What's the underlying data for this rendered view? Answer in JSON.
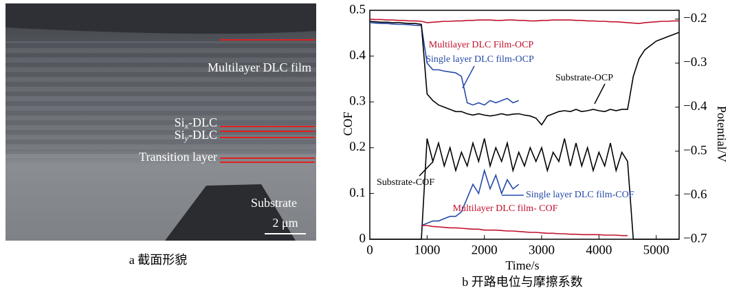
{
  "image_panel": {
    "labels": {
      "multilayer": "Multilayer DLC film",
      "six": [
        "Si",
        "x",
        "-DLC"
      ],
      "siy": [
        "Si",
        "y",
        "-DLC"
      ],
      "transition": "Transition layer",
      "substrate": "Substrate",
      "scale_bar": "2 μm"
    },
    "caption": "a  截面形貌"
  },
  "chart_data": {
    "type": "line",
    "caption": "b  开路电位与摩擦系数",
    "xlabel": "Time/s",
    "ylabel": "COF",
    "y2label": "Potential/V",
    "x": [
      0,
      100,
      200,
      300,
      400,
      500,
      600,
      700,
      800,
      900,
      1000,
      1100,
      1200,
      1300,
      1400,
      1500,
      1600,
      1700,
      1800,
      1900,
      2000,
      2100,
      2200,
      2300,
      2400,
      2500,
      2600,
      2700,
      2800,
      2900,
      3000,
      3100,
      3200,
      3300,
      3400,
      3500,
      3600,
      3700,
      3800,
      3900,
      4000,
      4100,
      4200,
      4300,
      4400,
      4500,
      4600,
      4700,
      4800,
      4900,
      5000,
      5100,
      5200,
      5300,
      5400
    ],
    "xlim": [
      0,
      5400
    ],
    "xticks": [
      0,
      1000,
      2000,
      3000,
      4000,
      5000
    ],
    "ylim": [
      0,
      0.5
    ],
    "yticks": [
      0,
      0.1,
      0.2,
      0.3,
      0.4,
      0.5
    ],
    "y2lim": [
      -0.7,
      -0.18
    ],
    "y2ticks": [
      {
        "value": -0.2,
        "label": "−0.2"
      },
      {
        "value": -0.3,
        "label": "−0.3"
      },
      {
        "value": -0.4,
        "label": "−0.4"
      },
      {
        "value": -0.5,
        "label": "−0.5"
      },
      {
        "value": -0.6,
        "label": "−0.6"
      },
      {
        "value": -0.7,
        "label": "−0.7"
      }
    ],
    "series": [
      {
        "name": "Multilayer DLC Film-OCP",
        "color": "#c0102c",
        "axis": "y2",
        "values": [
          -0.2,
          -0.201,
          -0.201,
          -0.202,
          -0.202,
          -0.203,
          -0.203,
          -0.204,
          -0.204,
          -0.205,
          -0.208,
          -0.207,
          -0.206,
          -0.205,
          -0.205,
          -0.204,
          -0.204,
          -0.203,
          -0.203,
          -0.202,
          -0.202,
          -0.202,
          -0.203,
          -0.203,
          -0.202,
          -0.202,
          -0.203,
          -0.203,
          -0.204,
          -0.204,
          -0.203,
          -0.203,
          -0.202,
          -0.202,
          -0.202,
          -0.202,
          -0.203,
          -0.203,
          -0.204,
          -0.204,
          -0.205,
          -0.205,
          -0.206,
          -0.206,
          -0.207,
          -0.208,
          -0.209,
          -0.21,
          -0.208,
          -0.207,
          -0.206,
          -0.205,
          -0.205,
          -0.204,
          -0.204
        ]
      },
      {
        "name": "Single layer DLC film-OCP",
        "color": "#2449a8",
        "axis": "y2",
        "values": [
          -0.208,
          -0.209,
          -0.21,
          -0.21,
          -0.211,
          -0.212,
          -0.212,
          -0.213,
          -0.214,
          -0.215,
          -0.3,
          -0.315,
          -0.315,
          -0.318,
          -0.32,
          -0.322,
          -0.33,
          -0.39,
          -0.395,
          -0.39,
          -0.395,
          -0.385,
          -0.39,
          -0.385,
          -0.38,
          -0.39,
          -0.385,
          null,
          null,
          null,
          null,
          null,
          null,
          null,
          null,
          null,
          null,
          null,
          null,
          null,
          null,
          null,
          null,
          null,
          null,
          null,
          null,
          null,
          null,
          null,
          null,
          null,
          null,
          null,
          null
        ]
      },
      {
        "name": "Substrate-OCP",
        "color": "#000000",
        "axis": "y2",
        "values": [
          -0.205,
          -0.206,
          -0.207,
          -0.207,
          -0.208,
          -0.208,
          -0.209,
          -0.21,
          -0.21,
          -0.212,
          -0.37,
          -0.385,
          -0.395,
          -0.4,
          -0.405,
          -0.41,
          -0.41,
          -0.415,
          -0.418,
          -0.415,
          -0.418,
          -0.42,
          -0.418,
          -0.415,
          -0.418,
          -0.416,
          -0.415,
          -0.418,
          -0.42,
          -0.425,
          -0.44,
          -0.42,
          -0.415,
          -0.41,
          -0.408,
          -0.41,
          -0.405,
          -0.41,
          -0.408,
          -0.405,
          -0.408,
          -0.41,
          -0.405,
          -0.408,
          -0.405,
          -0.405,
          -0.33,
          -0.29,
          -0.27,
          -0.26,
          -0.25,
          -0.245,
          -0.24,
          -0.235,
          -0.23
        ]
      },
      {
        "name": "Substrate-COF",
        "color": "#000000",
        "values": [
          0,
          0,
          0,
          0,
          0,
          0,
          0,
          0,
          0,
          0,
          0.22,
          0.17,
          0.21,
          0.16,
          0.2,
          0.15,
          0.19,
          0.16,
          0.21,
          0.17,
          0.22,
          0.16,
          0.2,
          0.17,
          0.21,
          0.15,
          0.19,
          0.16,
          0.2,
          0.17,
          0.2,
          0.15,
          0.19,
          0.17,
          0.22,
          0.16,
          0.21,
          0.16,
          0.2,
          0.15,
          0.19,
          0.16,
          0.21,
          0.15,
          0.19,
          0.17,
          0,
          0,
          0,
          0,
          0,
          0,
          0,
          0,
          0
        ]
      },
      {
        "name": "Single layer DLC film-COF",
        "color": "#2449a8",
        "values": [
          null,
          null,
          null,
          null,
          null,
          null,
          null,
          null,
          null,
          0.03,
          0.035,
          0.04,
          0.04,
          0.045,
          0.05,
          0.05,
          0.06,
          0.09,
          0.12,
          0.1,
          0.15,
          0.11,
          0.14,
          0.1,
          0.13,
          0.11,
          0.12,
          null,
          null,
          null,
          null,
          null,
          null,
          null,
          null,
          null,
          null,
          null,
          null,
          null,
          null,
          null,
          null,
          null,
          null,
          null,
          null,
          null,
          null,
          null,
          null,
          null,
          null,
          null,
          null
        ]
      },
      {
        "name": "Multilayer DLC film- COF",
        "color": "#c0102c",
        "values": [
          null,
          null,
          null,
          null,
          null,
          null,
          null,
          null,
          null,
          0.03,
          0.03,
          0.028,
          0.027,
          0.026,
          0.025,
          0.025,
          0.024,
          0.023,
          0.022,
          0.022,
          0.02,
          0.02,
          0.02,
          0.019,
          0.018,
          0.018,
          0.017,
          0.016,
          0.015,
          0.015,
          0.014,
          0.013,
          0.013,
          0.012,
          0.012,
          0.011,
          0.011,
          0.01,
          0.01,
          0.01,
          0.01,
          0.009,
          0.009,
          0.009,
          0.008,
          0.008,
          null,
          null,
          null,
          null,
          null,
          null,
          null,
          null,
          null
        ]
      }
    ]
  }
}
